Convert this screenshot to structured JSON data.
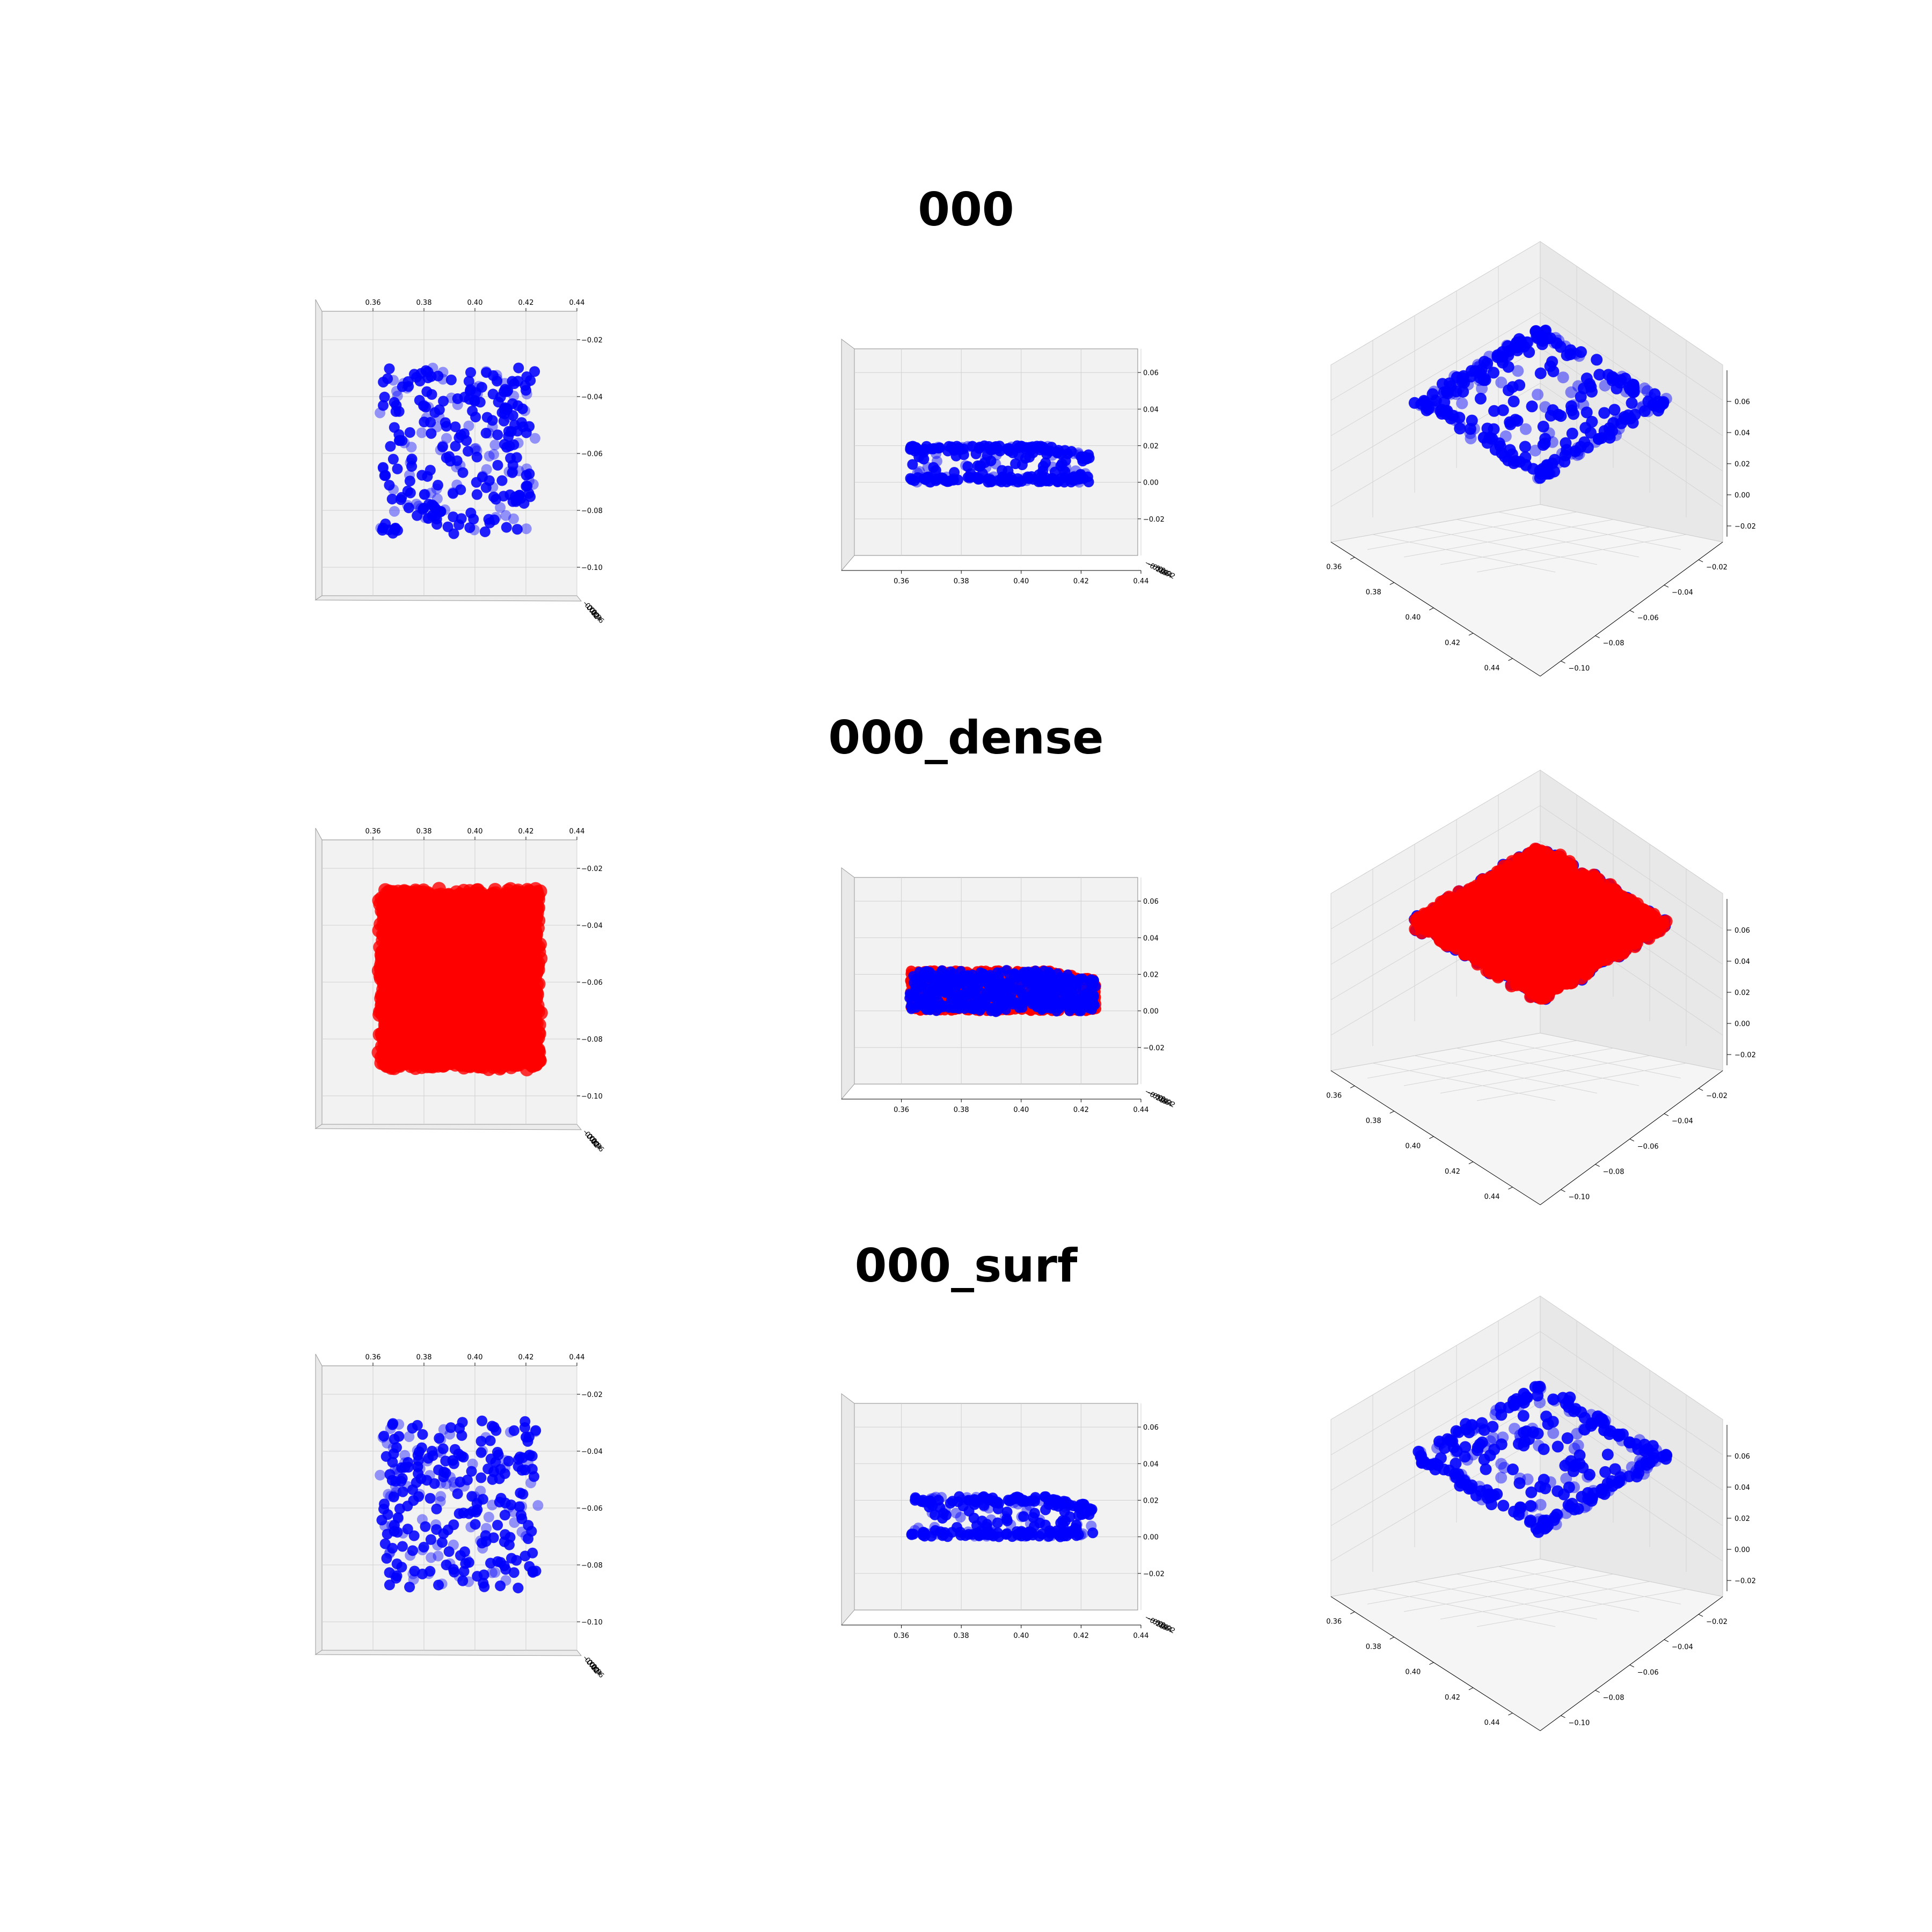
{
  "figure": {
    "rows": [
      {
        "title": "000",
        "color": "#0000ff",
        "overlay_color": null,
        "layers": "sparse"
      },
      {
        "title": "000_dense",
        "color": "#0000ff",
        "overlay_color": "#ff0000",
        "layers": "dense"
      },
      {
        "title": "000_surf",
        "color": "#0000ff",
        "overlay_color": null,
        "layers": "surf"
      }
    ],
    "views": [
      "top",
      "front",
      "isometric"
    ]
  },
  "chart_data": [
    {
      "type": "scatter",
      "title": "000",
      "series": [
        {
          "color": "#0000ff",
          "points": "sparse point cloud, ~300 points"
        }
      ],
      "x_ticks": [
        "0.36",
        "0.38",
        "0.40",
        "0.42",
        "0.44"
      ],
      "y_ticks": [
        "−0.10",
        "−0.08",
        "−0.06",
        "−0.04",
        "−0.02"
      ],
      "z_ticks": [
        "−0.02",
        "0.00",
        "0.02",
        "0.04",
        "0.06"
      ],
      "x_extent": [
        0.363,
        0.423
      ],
      "y_extent": [
        -0.088,
        -0.03
      ],
      "z_extent": [
        0.0,
        0.02
      ],
      "xlim": [
        0.34,
        0.44
      ],
      "ylim": [
        -0.11,
        -0.01
      ],
      "zlim": [
        -0.04,
        0.07
      ]
    },
    {
      "type": "scatter",
      "title": "000_dense",
      "series": [
        {
          "color": "#0000ff",
          "points": "original point cloud"
        },
        {
          "color": "#ff0000",
          "points": "dense point cloud"
        }
      ],
      "x_ticks": [
        "0.36",
        "0.38",
        "0.40",
        "0.42",
        "0.44"
      ],
      "y_ticks": [
        "−0.10",
        "−0.08",
        "−0.06",
        "−0.04",
        "−0.02"
      ],
      "z_ticks": [
        "−0.02",
        "0.00",
        "0.02",
        "0.04",
        "0.06"
      ],
      "x_extent": [
        0.363,
        0.425
      ],
      "y_extent": [
        -0.09,
        -0.028
      ],
      "z_extent": [
        0.0,
        0.022
      ],
      "xlim": [
        0.34,
        0.44
      ],
      "ylim": [
        -0.11,
        -0.01
      ],
      "zlim": [
        -0.04,
        0.07
      ]
    },
    {
      "type": "scatter",
      "title": "000_surf",
      "series": [
        {
          "color": "#0000ff",
          "points": "surface point cloud, ~300 points"
        }
      ],
      "x_ticks": [
        "0.36",
        "0.38",
        "0.40",
        "0.42",
        "0.44"
      ],
      "y_ticks": [
        "−0.10",
        "−0.08",
        "−0.06",
        "−0.04",
        "−0.02"
      ],
      "z_ticks": [
        "−0.02",
        "0.00",
        "0.02",
        "0.04",
        "0.06"
      ],
      "x_extent": [
        0.363,
        0.424
      ],
      "y_extent": [
        -0.088,
        -0.03
      ],
      "z_extent": [
        0.0,
        0.022
      ],
      "xlim": [
        0.34,
        0.44
      ],
      "ylim": [
        -0.11,
        -0.01
      ],
      "zlim": [
        -0.04,
        0.07
      ]
    }
  ]
}
